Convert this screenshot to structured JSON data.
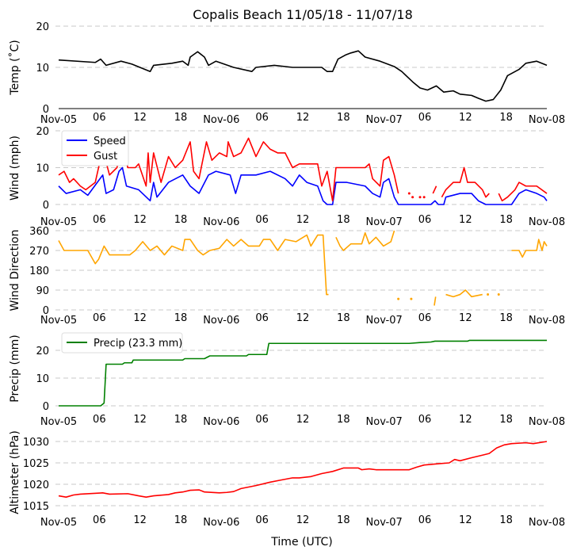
{
  "chart_data": [
    {
      "type": "line",
      "title": "Copalis Beach 11/05/18 - 11/07/18",
      "ylabel": "Temp ($^\\circ$C)",
      "ylabel_display": "Temp (˚C)",
      "ylim": [
        0,
        20
      ],
      "yticks": [
        "0",
        "10",
        "20"
      ],
      "ytick_values": [
        0,
        10,
        20
      ],
      "grid": true,
      "series": [
        {
          "name": "Temp",
          "color": "#000000",
          "x": [
            0,
            5.4,
            6.2,
            7.0,
            9.2,
            10.8,
            13.5,
            14.0,
            16.7,
            18.3,
            19.1,
            19.4,
            20.5,
            21.5,
            22.1,
            23.2,
            25.8,
            28.5,
            29.1,
            31.8,
            34.5,
            38.8,
            39.6,
            40.4,
            41.2,
            42.3,
            43.1,
            44.2,
            45.2,
            47.4,
            49.5,
            50.6,
            52.2,
            53.3,
            54.4,
            55.7,
            56.8,
            58.2,
            59.2,
            60.9,
            61.9,
            63.0,
            64.1,
            65.2,
            66.2,
            67.9,
            68.9,
            70.5,
            72.0
          ],
          "y": [
            11.8,
            11.2,
            12,
            10.5,
            11.5,
            10.8,
            9,
            10.5,
            11,
            11.5,
            10.5,
            12.5,
            13.8,
            12.5,
            10.5,
            11.5,
            10,
            9,
            10,
            10.5,
            10,
            10,
            9,
            9,
            12,
            13,
            13.5,
            14,
            12.5,
            11.5,
            10.2,
            9,
            6.5,
            5,
            4.5,
            5.5,
            4,
            4.3,
            3.5,
            3.2,
            2.5,
            1.8,
            2.2,
            4.5,
            8,
            9.5,
            11,
            11.5,
            10.5
          ]
        }
      ]
    },
    {
      "type": "line",
      "ylabel": "Wind (mph)",
      "ylim": [
        0,
        20
      ],
      "yticks": [
        "0",
        "10",
        "20"
      ],
      "ytick_values": [
        0,
        10,
        20
      ],
      "grid": true,
      "legend": "top-left",
      "series": [
        {
          "name": "Speed",
          "color": "#0000ff",
          "x": [
            0,
            1.1,
            3.2,
            4.3,
            6.5,
            7.0,
            8.1,
            8.9,
            9.4,
            10.0,
            11.8,
            13.5,
            14.0,
            14.5,
            16.2,
            18.3,
            19.4,
            20.7,
            22.1,
            23.2,
            25.3,
            26.1,
            26.9,
            29.1,
            31.2,
            33.4,
            34.5,
            35.5,
            36.6,
            38.2,
            39.0,
            39.6,
            40.4,
            40.9,
            42.5,
            45.2,
            46.3,
            47.4,
            47.9,
            48.7,
            49.5,
            50.1,
            54.9,
            55.5,
            56.0,
            56.8,
            57.1,
            59.2,
            60.9,
            61.9,
            63.0,
            66.8,
            67.9,
            68.9,
            70.5,
            71.6,
            72.0
          ],
          "y": [
            5,
            3,
            4,
            2.5,
            8,
            3,
            4,
            9,
            10,
            5,
            4,
            1,
            6,
            2,
            6,
            8,
            5,
            3,
            8,
            9,
            8,
            3,
            8,
            8,
            9,
            7,
            5,
            8,
            6,
            5,
            1,
            0,
            0,
            6,
            6,
            5,
            3,
            2,
            6,
            7,
            2,
            0,
            0,
            1,
            0,
            0,
            2,
            3,
            3,
            1,
            0,
            0,
            3,
            4,
            3,
            2,
            1
          ]
        },
        {
          "name": "Gust",
          "color": "#ff0000",
          "x": [
            0,
            0.8,
            1.6,
            2.2,
            3.2,
            4.0,
            5.4,
            6.5,
            7.5,
            8.6,
            9.4,
            10.2,
            11.3,
            11.8,
            12.9,
            13.2,
            13.5,
            14.0,
            15.1,
            16.2,
            17.2,
            18.3,
            19.4,
            19.9,
            20.7,
            21.8,
            22.6,
            23.7,
            24.8,
            25.0,
            25.8,
            26.9,
            28.0,
            29.1,
            30.2,
            31.2,
            32.3,
            33.4,
            34.5,
            35.5,
            37.2,
            38.2,
            38.8,
            39.6,
            40.4,
            40.9,
            42.5,
            45.2,
            45.8,
            46.3,
            47.4,
            47.9,
            48.7,
            49.5,
            50.1,
            null,
            51.7,
            null,
            52.2,
            null,
            53.3,
            null,
            53.9,
            null,
            55.2,
            55.7,
            null,
            56.5,
            57.1,
            58.2,
            59.2,
            59.8,
            60.3,
            61.4,
            62.5,
            63.0,
            63.5,
            null,
            64.9,
            65.4,
            66.2,
            67.3,
            67.9,
            68.9,
            70.5,
            72.0
          ],
          "y": [
            8,
            9,
            6,
            7,
            5,
            4,
            6,
            15,
            8,
            10,
            16,
            10,
            10,
            11,
            5,
            14,
            6,
            14,
            6,
            13,
            10,
            12,
            17,
            9,
            7,
            17,
            12,
            14,
            13,
            17,
            13,
            14,
            18,
            13,
            17,
            15,
            14,
            14,
            10,
            11,
            11,
            11,
            5,
            9,
            1,
            10,
            10,
            10,
            11,
            7,
            5,
            12,
            13,
            8,
            3,
            null,
            3,
            null,
            2,
            null,
            2,
            null,
            2,
            null,
            3,
            5,
            null,
            2,
            4,
            6,
            6,
            10,
            6,
            6,
            4,
            2,
            3,
            null,
            3,
            1,
            2,
            4,
            6,
            5,
            5,
            3
          ]
        }
      ]
    },
    {
      "type": "line",
      "ylabel": "Wind Direction",
      "ylim": [
        0,
        360
      ],
      "yticks": [
        "0",
        "90",
        "180",
        "270",
        "360"
      ],
      "ytick_values": [
        0,
        90,
        180,
        270,
        360
      ],
      "grid": true,
      "series": [
        {
          "name": "Direction",
          "color": "#ffa500",
          "x": [
            0,
            0.8,
            2.2,
            4.3,
            5.4,
            5.9,
            6.7,
            7.5,
            10.5,
            11.3,
            12.4,
            13.5,
            14.5,
            15.6,
            16.7,
            18.3,
            18.6,
            19.4,
            20.5,
            21.3,
            22.3,
            23.7,
            24.8,
            25.8,
            26.9,
            28.0,
            29.6,
            30.2,
            31.2,
            32.3,
            33.4,
            35.0,
            36.6,
            37.2,
            38.2,
            39.0,
            39.5,
            39.8,
            null,
            40.9,
            41.5,
            42.0,
            43.1,
            44.7,
            45.2,
            45.8,
            46.8,
            47.9,
            49.0,
            49.5,
            null,
            50.1,
            null,
            52.0,
            null,
            55.4,
            55.6,
            null,
            57.1,
            58.2,
            59.2,
            60.0,
            60.9,
            62.5,
            null,
            63.3,
            null,
            64.9,
            null,
            66.8,
            67.9,
            68.4,
            68.9,
            70.5,
            70.8,
            71.3,
            71.6,
            72.0
          ],
          "y": [
            315,
            270,
            270,
            270,
            210,
            230,
            290,
            250,
            250,
            270,
            310,
            270,
            290,
            250,
            290,
            270,
            320,
            320,
            270,
            250,
            270,
            280,
            320,
            290,
            320,
            290,
            290,
            320,
            320,
            270,
            320,
            310,
            340,
            290,
            340,
            340,
            70,
            70,
            null,
            330,
            290,
            270,
            300,
            300,
            350,
            300,
            330,
            290,
            310,
            360,
            null,
            50,
            null,
            50,
            null,
            20,
            60,
            null,
            70,
            60,
            70,
            90,
            60,
            70,
            null,
            70,
            null,
            70,
            null,
            270,
            270,
            240,
            270,
            270,
            320,
            270,
            310,
            290
          ]
        }
      ]
    },
    {
      "type": "line",
      "ylabel": "Precip (mm)",
      "ylim": [
        0,
        25
      ],
      "yticks": [
        "0",
        "10",
        "20"
      ],
      "ytick_values": [
        0,
        10,
        20
      ],
      "grid": true,
      "legend": "top-left",
      "series": [
        {
          "name": "Precip (23.3 mm)",
          "color": "#008000",
          "x": [
            0,
            6.2,
            6.7,
            7.0,
            9.4,
            9.7,
            10.8,
            11.0,
            18.3,
            18.6,
            21.5,
            22.3,
            27.7,
            28.0,
            30.7,
            31.0,
            51.7,
            53.3,
            54.9,
            55.5,
            60.3,
            60.6,
            72.0
          ],
          "y": [
            0,
            0,
            1,
            15,
            15,
            15.5,
            15.5,
            16.5,
            16.5,
            17,
            17,
            18,
            18,
            18.5,
            18.5,
            22.5,
            22.5,
            22.8,
            23.0,
            23.3,
            23.3,
            23.6,
            23.6
          ]
        }
      ]
    },
    {
      "type": "line",
      "ylabel": "Altimeter (hPa)",
      "xlabel": "Time (UTC)",
      "ylim": [
        1015,
        1030
      ],
      "yticks": [
        "1015",
        "1020",
        "1025",
        "1030"
      ],
      "ytick_values": [
        1015,
        1020,
        1025,
        1030
      ],
      "grid": true,
      "series": [
        {
          "name": "Altimeter",
          "color": "#ff0000",
          "x": [
            0,
            1.1,
            2.2,
            3.2,
            6.5,
            7.5,
            10.2,
            11.8,
            12.9,
            14.0,
            16.2,
            17.2,
            18.3,
            19.4,
            20.7,
            21.5,
            23.7,
            24.8,
            25.8,
            26.9,
            29.1,
            31.2,
            32.8,
            34.5,
            35.5,
            37.2,
            38.8,
            40.4,
            42.0,
            44.2,
            44.7,
            45.8,
            46.8,
            51.7,
            52.8,
            53.9,
            56.0,
            57.6,
            58.4,
            59.2,
            60.9,
            62.5,
            63.5,
            64.6,
            65.7,
            66.8,
            68.9,
            70.0,
            72.0
          ],
          "y": [
            1017.3,
            1017.0,
            1017.5,
            1017.7,
            1018,
            1017.7,
            1017.8,
            1017.3,
            1017,
            1017.3,
            1017.6,
            1018,
            1018.2,
            1018.6,
            1018.7,
            1018.2,
            1018,
            1018.1,
            1018.3,
            1019,
            1019.7,
            1020.5,
            1021,
            1021.5,
            1021.5,
            1021.8,
            1022.5,
            1023,
            1023.8,
            1023.8,
            1023.4,
            1023.6,
            1023.4,
            1023.4,
            1024,
            1024.5,
            1024.8,
            1025,
            1025.8,
            1025.5,
            1026.2,
            1026.8,
            1027.2,
            1028.5,
            1029.2,
            1029.5,
            1029.7,
            1029.5,
            1030
          ]
        }
      ]
    }
  ],
  "x_axis": {
    "unit": "hours since Nov-05 00:00 UTC",
    "xlim": [
      0,
      72
    ],
    "tick_values": [
      0,
      6,
      12,
      18,
      24,
      30,
      36,
      42,
      48,
      54,
      60,
      66,
      72
    ],
    "tick_labels": [
      "Nov-05",
      "06",
      "12",
      "18",
      "Nov-06",
      "06",
      "12",
      "18",
      "Nov-07",
      "06",
      "12",
      "18",
      "Nov-08"
    ]
  }
}
